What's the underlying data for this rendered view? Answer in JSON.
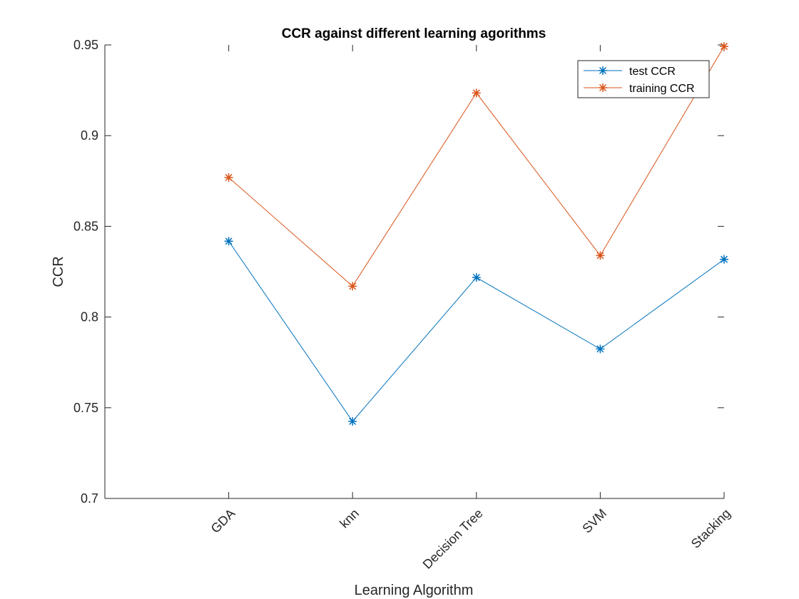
{
  "chart_data": {
    "type": "line",
    "title": "CCR against different learning agorithms",
    "xlabel": "Learning Algorithm",
    "ylabel": "CCR",
    "categories": [
      "GDA",
      "knn",
      "Decision Tree",
      "SVM",
      "Stacking"
    ],
    "ylim": [
      0.7,
      0.95
    ],
    "yticks": [
      0.7,
      0.75,
      0.8,
      0.85,
      0.9,
      0.95
    ],
    "ytick_labels": [
      "0.7",
      "0.75",
      "0.8",
      "0.85",
      "0.9",
      "0.95"
    ],
    "grid": false,
    "legend_position": "top-right",
    "marker": "asterisk",
    "series": [
      {
        "name": "test CCR",
        "color": "#0072BD",
        "values": [
          0.8418,
          0.7425,
          0.8218,
          0.7824,
          0.8318
        ]
      },
      {
        "name": "training CCR",
        "color": "#D95319",
        "values": [
          0.8769,
          0.817,
          0.9235,
          0.8339,
          0.9492
        ]
      }
    ]
  }
}
